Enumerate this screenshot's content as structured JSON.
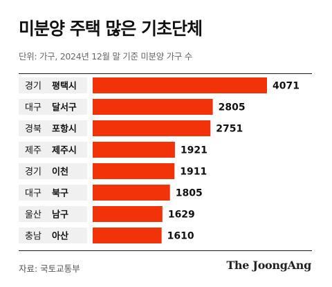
{
  "header": {
    "title": "미분양 주택 많은 기초단체",
    "subtitle": "단위: 가구, 2024년 12월 말 기준 미분양 가구 수"
  },
  "footer": {
    "source": "자료: 국토교통부",
    "brand": "The JoongAng"
  },
  "colors": {
    "bar": "#f2330a",
    "label_band": "#f0f0f0",
    "text": "#111111"
  },
  "chart_data": {
    "type": "bar",
    "orientation": "horizontal",
    "categories": [
      {
        "region": "경기",
        "city": "평택시"
      },
      {
        "region": "대구",
        "city": "달서구"
      },
      {
        "region": "경북",
        "city": "포항시"
      },
      {
        "region": "제주",
        "city": "제주시"
      },
      {
        "region": "경기",
        "city": "이천"
      },
      {
        "region": "대구",
        "city": "북구"
      },
      {
        "region": "울산",
        "city": "남구"
      },
      {
        "region": "충남",
        "city": "아산"
      }
    ],
    "values": [
      4071,
      2805,
      2751,
      1921,
      1911,
      1805,
      1629,
      1610
    ],
    "unit": "가구",
    "xlim": [
      0,
      4071
    ],
    "grid": false,
    "legend": false
  }
}
